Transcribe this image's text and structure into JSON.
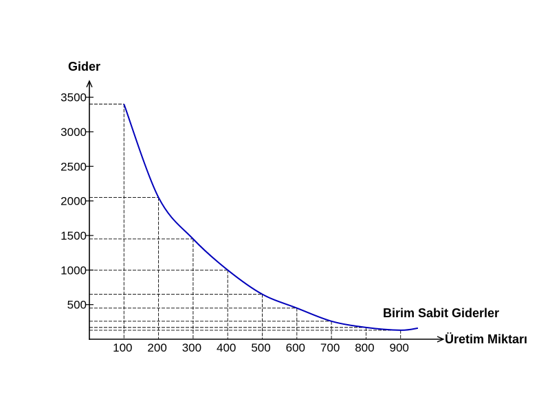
{
  "chart_data": {
    "type": "line",
    "title": "",
    "ylabel": "Gider",
    "xlabel": "Üretim Miktarı",
    "series_label": "Birim Sabit Giderler",
    "x_ticks": [
      "100",
      "200",
      "300",
      "400",
      "500",
      "600",
      "700",
      "800",
      "900"
    ],
    "y_ticks": [
      "500",
      "1000",
      "1500",
      "2000",
      "2500",
      "3000",
      "3500"
    ],
    "xlim": [
      0,
      1000
    ],
    "ylim": [
      0,
      3500
    ],
    "grid": "dashed guide lines from curve points to axes",
    "series": [
      {
        "color": "#0000bb",
        "x": [
          100,
          200,
          300,
          400,
          500,
          600,
          700,
          800,
          900,
          950
        ],
        "y": [
          3400,
          2050,
          1450,
          1000,
          650,
          450,
          260,
          170,
          130,
          160
        ]
      }
    ],
    "guide_points": [
      {
        "x": 100,
        "y": 3400
      },
      {
        "x": 200,
        "y": 2050
      },
      {
        "x": 300,
        "y": 1450
      },
      {
        "x": 400,
        "y": 1000
      },
      {
        "x": 500,
        "y": 650
      },
      {
        "x": 600,
        "y": 450
      },
      {
        "x": 700,
        "y": 260
      },
      {
        "x": 800,
        "y": 170
      },
      {
        "x": 900,
        "y": 130
      }
    ],
    "colors": {
      "curve": "#0000bb",
      "axis": "#000000",
      "guide": "#000000"
    }
  }
}
